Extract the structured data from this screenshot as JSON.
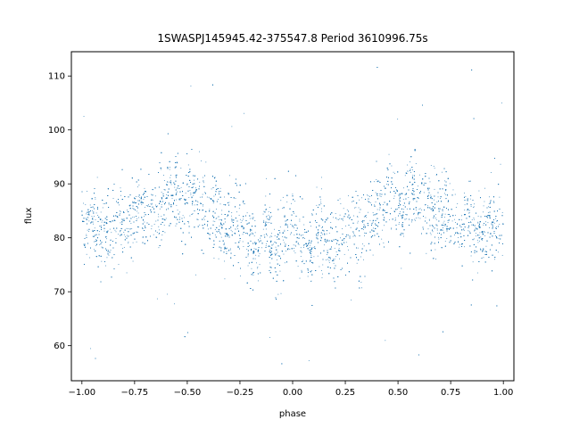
{
  "chart_data": {
    "type": "scatter",
    "title": "1SWASPJ145945.42-375547.8 Period 3610996.75s",
    "xlabel": "phase",
    "ylabel": "flux",
    "xlim": [
      -1.05,
      1.05
    ],
    "ylim": [
      53.5,
      114.5
    ],
    "xticks": [
      -1.0,
      -0.75,
      -0.5,
      -0.25,
      0.0,
      0.25,
      0.5,
      0.75,
      1.0
    ],
    "xtick_labels": [
      "−1.00",
      "−0.75",
      "−0.50",
      "−0.25",
      "0.00",
      "0.25",
      "0.50",
      "0.75",
      "1.00"
    ],
    "yticks": [
      60,
      70,
      80,
      90,
      100,
      110
    ],
    "ytick_labels": [
      "60",
      "70",
      "80",
      "90",
      "100",
      "110"
    ],
    "grid": false,
    "legend": false,
    "point_color": "#1f77b4",
    "series": [
      {
        "x_range": [
          -1.0,
          1.0
        ],
        "flux_median_by_phase": [
          [
            0.0,
            82
          ],
          [
            0.03,
            81
          ],
          [
            0.06,
            79
          ],
          [
            0.09,
            76
          ],
          [
            0.12,
            83
          ],
          [
            0.16,
            79
          ],
          [
            0.2,
            78
          ],
          [
            0.24,
            82
          ],
          [
            0.28,
            83
          ],
          [
            0.32,
            80
          ],
          [
            0.36,
            84
          ],
          [
            0.4,
            85
          ],
          [
            0.44,
            86
          ],
          [
            0.48,
            89
          ],
          [
            0.52,
            84
          ],
          [
            0.56,
            90
          ],
          [
            0.6,
            88
          ],
          [
            0.64,
            86
          ],
          [
            0.68,
            84
          ],
          [
            0.72,
            86
          ],
          [
            0.76,
            83
          ],
          [
            0.8,
            82
          ],
          [
            0.84,
            83
          ],
          [
            0.88,
            81
          ],
          [
            0.92,
            82
          ],
          [
            0.96,
            84
          ],
          [
            1.0,
            82
          ]
        ],
        "flux_typical_spread": 6,
        "flux_outlier_range": [
          56,
          112
        ],
        "approx_point_count": 9000
      }
    ]
  }
}
